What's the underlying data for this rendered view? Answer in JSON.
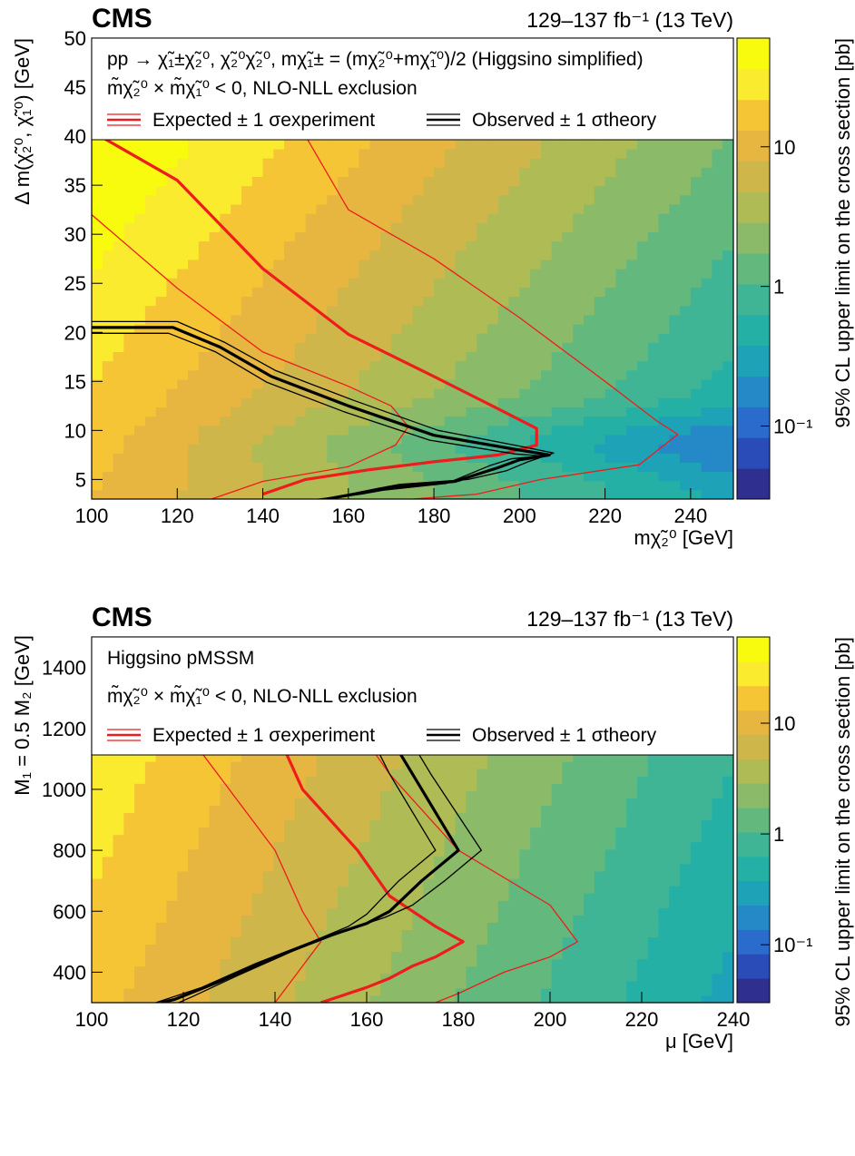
{
  "colors": {
    "expected": "#ee1c1c",
    "observed": "#000000",
    "palette": [
      "#2e2f8f",
      "#2a4cb8",
      "#2a6bcc",
      "#2489c6",
      "#1ea2b8",
      "#25b0a6",
      "#3fb595",
      "#63b97d",
      "#8bbb68",
      "#afbb54",
      "#cfb64a",
      "#e6b640",
      "#f5c535",
      "#faeb2e",
      "#f9fb0e"
    ]
  },
  "panels": [
    {
      "cms_label": "CMS",
      "lumi_label": "129–137 fb⁻¹ (13 TeV)",
      "legend": {
        "line1": "pp → χ̃₁±χ̃₂⁰, χ̃₂⁰χ̃₂⁰, mχ̃₁± = (mχ̃₂⁰+mχ̃₁⁰)/2 (Higgsino simplified)",
        "line2": "m̃χ̃₂⁰ × m̃χ̃₁⁰ < 0, NLO-NLL exclusion",
        "expected": "Expected ± 1 σexperiment",
        "observed": "Observed ± 1 σtheory"
      },
      "xlabel": "mχ̃₂⁰ [GeV]",
      "ylabel": "Δ m(χ̃₂⁰, χ̃₁⁰) [GeV]",
      "zlabel": "95% CL upper limit on the cross section [pb]"
    },
    {
      "cms_label": "CMS",
      "lumi_label": "129–137 fb⁻¹ (13 TeV)",
      "legend": {
        "line1": "Higgsino pMSSM",
        "line2": "m̃χ̃₂⁰ × m̃χ̃₁⁰ < 0, NLO-NLL exclusion",
        "expected": "Expected ± 1 σexperiment",
        "observed": "Observed ± 1 σtheory"
      },
      "xlabel": "μ [GeV]",
      "ylabel": "M₁ = 0.5 M₂ [GeV]",
      "zlabel": "95% CL upper limit on the cross section [pb]"
    }
  ],
  "chart_data": [
    {
      "type": "heatmap",
      "title": "",
      "xlabel": "mχ̃₂⁰ [GeV]",
      "ylabel": "Δ m(χ̃₂⁰, χ̃₁⁰) [GeV]",
      "zlabel": "95% CL upper limit on the cross section [pb]",
      "xlim": [
        100,
        250
      ],
      "ylim": [
        3,
        50
      ],
      "zscale": "log",
      "zlim": [
        0.03,
        60
      ],
      "xticks": [
        100,
        120,
        140,
        160,
        180,
        200,
        220,
        240
      ],
      "yticks": [
        5,
        10,
        15,
        20,
        25,
        30,
        35,
        40,
        45,
        50
      ],
      "zticks": [
        {
          "v": 0.1,
          "label": "10⁻¹"
        },
        {
          "v": 1,
          "label": "1"
        },
        {
          "v": 10,
          "label": "10"
        }
      ],
      "legend_box_bottom_y": 40,
      "grid": false,
      "contours": [
        {
          "name": "Expected",
          "style": "expected-central",
          "points": [
            [
              102,
              40
            ],
            [
              110,
              38
            ],
            [
              120,
              35.5
            ],
            [
              140,
              26.5
            ],
            [
              160,
              19.8
            ],
            [
              180,
              15.5
            ],
            [
              195,
              12.2
            ],
            [
              204,
              10.2
            ],
            [
              204,
              8.5
            ],
            [
              195,
              7.5
            ],
            [
              180,
              6.8
            ],
            [
              165,
              6
            ],
            [
              150,
              5
            ],
            [
              140,
              3.5
            ]
          ]
        },
        {
          "name": "Expected +1σ",
          "style": "expected-band",
          "points": [
            [
              100,
              32
            ],
            [
              120,
              24.5
            ],
            [
              140,
              18
            ],
            [
              160,
              14.5
            ],
            [
              170,
              12.5
            ],
            [
              174,
              10.4
            ],
            [
              171,
              8.5
            ],
            [
              160,
              6.3
            ],
            [
              140,
              4.8
            ],
            [
              128,
              3
            ]
          ]
        },
        {
          "name": "Expected -1σ",
          "style": "expected-band",
          "points": [
            [
              150,
              40
            ],
            [
              160,
              32.5
            ],
            [
              180,
              27.5
            ],
            [
              200,
              21.5
            ],
            [
              220,
              15
            ],
            [
              232,
              11
            ],
            [
              237,
              9.6
            ],
            [
              228,
              6.5
            ],
            [
              205,
              5
            ],
            [
              190,
              3.5
            ],
            [
              175,
              3
            ]
          ]
        },
        {
          "name": "Observed",
          "style": "observed-central",
          "points": [
            [
              100,
              20.5
            ],
            [
              119,
              20.5
            ],
            [
              130,
              18.5
            ],
            [
              142,
              15.5
            ],
            [
              160,
              12.5
            ],
            [
              180,
              9.5
            ],
            [
              200,
              8
            ],
            [
              207,
              7.5
            ],
            [
              200,
              7
            ],
            [
              195,
              6.2
            ],
            [
              185,
              4.8
            ],
            [
              170,
              4.2
            ],
            [
              165,
              3.8
            ],
            [
              155,
              3
            ]
          ]
        },
        {
          "name": "Observed +1σ",
          "style": "observed-band",
          "points": [
            [
              100,
              21.1
            ],
            [
              120,
              21.1
            ],
            [
              131,
              19
            ],
            [
              143,
              16.1
            ],
            [
              161,
              13.1
            ],
            [
              181,
              10
            ],
            [
              200,
              8.4
            ],
            [
              208,
              7.7
            ],
            [
              202,
              6.8
            ],
            [
              197,
              5.9
            ],
            [
              188,
              5
            ],
            [
              172,
              4.5
            ],
            [
              167,
              4.1
            ],
            [
              157,
              3.2
            ]
          ]
        },
        {
          "name": "Observed -1σ",
          "style": "observed-band",
          "points": [
            [
              100,
              19.9
            ],
            [
              118,
              19.9
            ],
            [
              129,
              18
            ],
            [
              141,
              14.9
            ],
            [
              159,
              11.9
            ],
            [
              179,
              9
            ],
            [
              199,
              7.6
            ],
            [
              205,
              7.4
            ],
            [
              198,
              7.1
            ],
            [
              193,
              6.4
            ],
            [
              183,
              4.6
            ],
            [
              168,
              3.9
            ],
            [
              163,
              3.5
            ],
            [
              153,
              3
            ]
          ]
        }
      ]
    },
    {
      "type": "heatmap",
      "title": "",
      "xlabel": "μ [GeV]",
      "ylabel": "M₁ = 0.5 M₂ [GeV]",
      "zlabel": "95% CL upper limit on the cross section [pb]",
      "xlim": [
        100,
        240
      ],
      "ylim": [
        300,
        1500
      ],
      "zscale": "log",
      "zlim": [
        0.03,
        60
      ],
      "xticks": [
        100,
        120,
        140,
        160,
        180,
        200,
        220,
        240
      ],
      "yticks": [
        400,
        600,
        800,
        1000,
        1200,
        1400
      ],
      "zticks": [
        {
          "v": 0.1,
          "label": "10⁻¹"
        },
        {
          "v": 1,
          "label": "1"
        },
        {
          "v": 10,
          "label": "10"
        }
      ],
      "legend_box_bottom_y": 1200,
      "grid": false,
      "contours": [
        {
          "name": "Expected",
          "style": "expected-central",
          "points": [
            [
              140,
              1200
            ],
            [
              146,
              1000
            ],
            [
              158,
              800
            ],
            [
              165,
              650
            ],
            [
              175,
              550
            ],
            [
              181,
              500
            ],
            [
              175,
              450
            ],
            [
              170,
              420
            ],
            [
              165,
              380
            ],
            [
              160,
              350
            ],
            [
              150,
              300
            ]
          ]
        },
        {
          "name": "Expected +1σ",
          "style": "expected-band",
          "points": [
            [
              120,
              1200
            ],
            [
              130,
              1000
            ],
            [
              140,
              800
            ],
            [
              146,
              600
            ],
            [
              150,
              500
            ],
            [
              145,
              400
            ],
            [
              140,
              300
            ]
          ]
        },
        {
          "name": "Expected -1σ",
          "style": "expected-band",
          "points": [
            [
              158,
              1200
            ],
            [
              165,
              1050
            ],
            [
              180,
              800
            ],
            [
              200,
              620
            ],
            [
              206,
              500
            ],
            [
              200,
              450
            ],
            [
              190,
              400
            ],
            [
              180,
              330
            ],
            [
              175,
              300
            ]
          ]
        },
        {
          "name": "Observed",
          "style": "observed-central",
          "points": [
            [
              164,
              1200
            ],
            [
              170,
              1050
            ],
            [
              180,
              800
            ],
            [
              172,
              700
            ],
            [
              165,
              600
            ],
            [
              160,
              560
            ],
            [
              152,
              520
            ],
            [
              140,
              450
            ],
            [
              128,
              370
            ],
            [
              118,
              310
            ],
            [
              115,
              300
            ]
          ]
        },
        {
          "name": "Observed +1σ",
          "style": "observed-band",
          "points": [
            [
              168,
              1200
            ],
            [
              174,
              1050
            ],
            [
              185,
              800
            ],
            [
              177,
              700
            ],
            [
              170,
              620
            ],
            [
              164,
              580
            ],
            [
              156,
              540
            ],
            [
              144,
              470
            ],
            [
              132,
              390
            ],
            [
              122,
              320
            ],
            [
              119,
              300
            ]
          ]
        },
        {
          "name": "Observed -1σ",
          "style": "observed-band",
          "points": [
            [
              160,
              1200
            ],
            [
              165,
              1050
            ],
            [
              175,
              800
            ],
            [
              167,
              700
            ],
            [
              160,
              590
            ],
            [
              156,
              550
            ],
            [
              148,
              500
            ],
            [
              136,
              430
            ],
            [
              124,
              350
            ],
            [
              114,
              300
            ]
          ]
        }
      ]
    }
  ]
}
